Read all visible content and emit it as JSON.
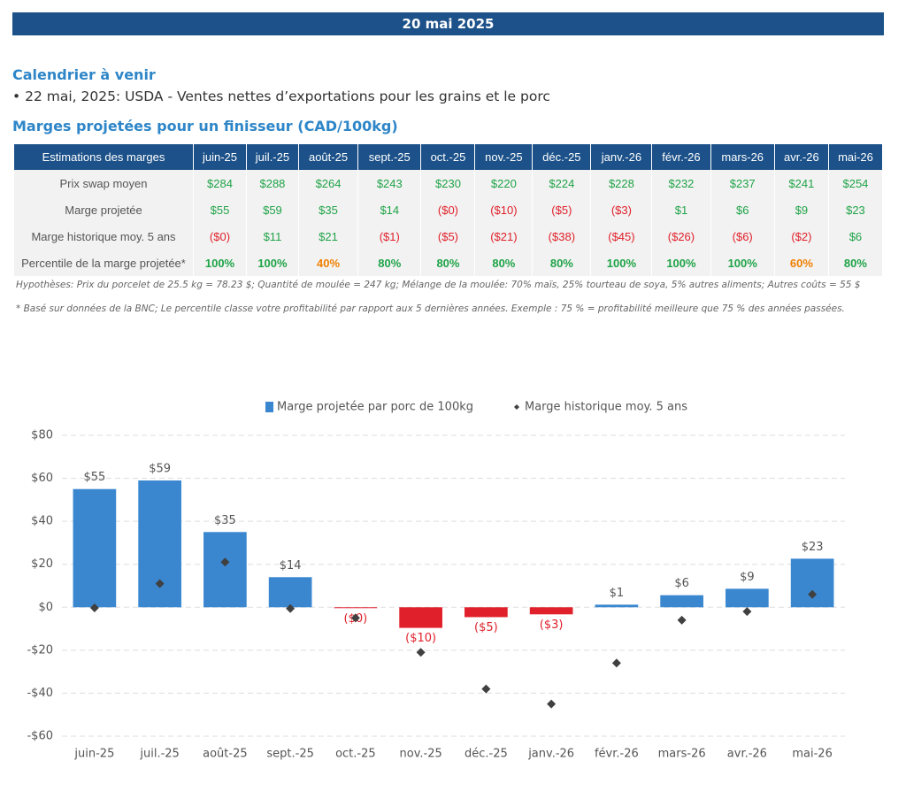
{
  "header": {
    "title": "20 mai 2025"
  },
  "calendar": {
    "title": "Calendrier à venir",
    "items": [
      "22 mai, 2025: USDA - Ventes nettes d’exportations pour les grains et le porc"
    ]
  },
  "table": {
    "title": "Marges projetées pour un finisseur (CAD/100kg)",
    "header": [
      "Estimations des marges",
      "juin-25",
      "juil.-25",
      "août-25",
      "sept.-25",
      "oct.-25",
      "nov.-25",
      "déc.-25",
      "janv.-26",
      "févr.-26",
      "mars-26",
      "avr.-26",
      "mai-26"
    ],
    "rows": [
      [
        "Prix swap moyen",
        "$284",
        "$288",
        "$264",
        "$243",
        "$230",
        "$220",
        "$224",
        "$228",
        "$232",
        "$237",
        "$241",
        "$254"
      ],
      [
        "Marge projetée",
        "$55",
        "$59",
        "$35",
        "$14",
        "($0)",
        "($10)",
        "($5)",
        "($3)",
        "$1",
        "$6",
        "$9",
        "$23"
      ],
      [
        "Marge historique moy. 5 ans",
        "($0)",
        "$11",
        "$21",
        "($1)",
        "($5)",
        "($21)",
        "($38)",
        "($45)",
        "($26)",
        "($6)",
        "($2)",
        "$6"
      ],
      [
        "Percentile de la marge projetée*",
        "100%",
        "100%",
        "40%",
        "80%",
        "80%",
        "80%",
        "80%",
        "100%",
        "100%",
        "100%",
        "60%",
        "80%"
      ]
    ],
    "notes": [
      "Hypothèses: Prix du porcelet de 25.5 kg = 78.23 $; Quantité de moulée = 247 kg; Mélange de la moulée: 70% maïs, 25% tourteau de soya, 5% autres aliments; Autres coûts = 55 $",
      "* Basé sur données de la BNC; Le percentile classe votre profitabilité par rapport aux 5 dernières années. Exemple : 75 % = profitabilité meilleure que 75 % des années passées."
    ]
  },
  "chart_data": {
    "type": "bar",
    "categories": [
      "juin-25",
      "juil.-25",
      "août-25",
      "sept.-25",
      "oct.-25",
      "nov.-25",
      "déc.-25",
      "janv.-26",
      "févr.-26",
      "mars-26",
      "avr.-26",
      "mai-26"
    ],
    "series": [
      {
        "name": "Marge projetée par porc de 100kg",
        "type": "bar",
        "color": "#3a87d0",
        "negative_color": "#e0202a",
        "values": [
          55,
          59,
          35,
          14,
          -0.4,
          -9.6,
          -4.6,
          -3.3,
          1.2,
          5.6,
          8.6,
          22.6
        ],
        "value_labels": [
          "$55",
          "$59",
          "$35",
          "$14",
          "($0)",
          "($10)",
          "($5)",
          "($3)",
          "$1",
          "$6",
          "$9",
          "$23"
        ]
      },
      {
        "name": "Marge historique moy. 5 ans",
        "type": "scatter",
        "color": "#404040",
        "values": [
          -0.3,
          11,
          21,
          -0.6,
          -5,
          -21,
          -38,
          -45,
          -26,
          -6,
          -2,
          6
        ]
      }
    ],
    "ylim": [
      -60,
      80
    ],
    "yticks": [
      {
        "value": -60,
        "label": "-$60"
      },
      {
        "value": -40,
        "label": "-$40"
      },
      {
        "value": -20,
        "label": "-$20"
      },
      {
        "value": 0,
        "label": "$0"
      },
      {
        "value": 20,
        "label": "$20"
      },
      {
        "value": 40,
        "label": "$40"
      },
      {
        "value": 60,
        "label": "$60"
      },
      {
        "value": 80,
        "label": "$80"
      }
    ],
    "grid": true,
    "legend": "top"
  }
}
